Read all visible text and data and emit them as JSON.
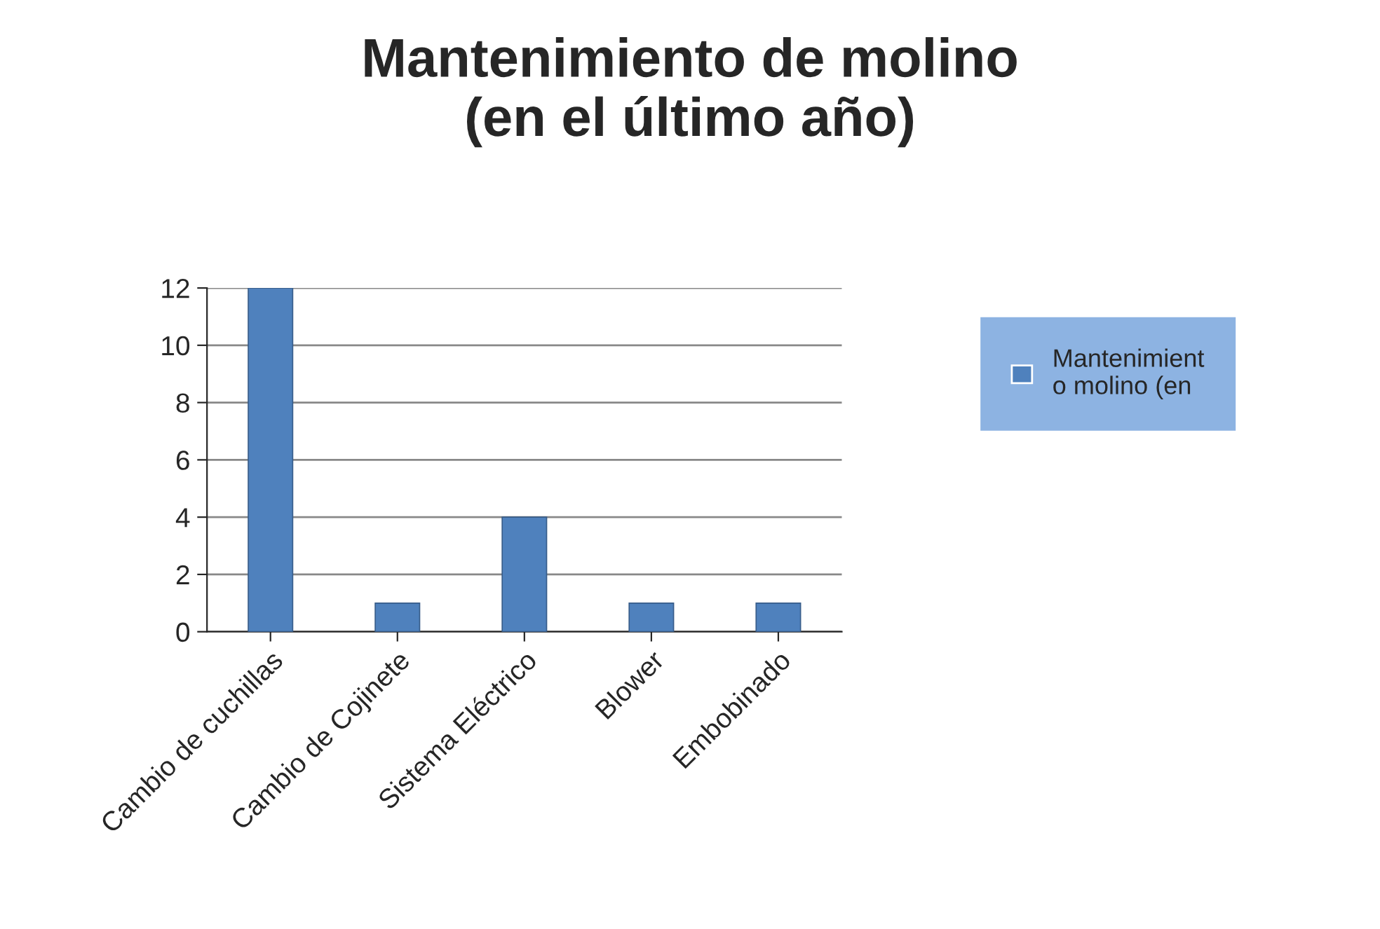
{
  "chart_data": {
    "type": "bar",
    "title": "Mantenimiento de molino\n(en el último año)",
    "categories": [
      "Cambio de cuchillas",
      "Cambio de Cojinete",
      "Sistema Eléctrico",
      "Blower",
      "Embobinado"
    ],
    "series": [
      {
        "name": "Mantenimient\no molino (en",
        "color": "#4f81bd",
        "values": [
          12,
          1,
          4,
          1,
          1
        ]
      }
    ],
    "ylim": [
      0,
      12
    ],
    "yticks": [
      0,
      2,
      4,
      6,
      8,
      10,
      12
    ],
    "grid": "y",
    "legend": "right"
  }
}
